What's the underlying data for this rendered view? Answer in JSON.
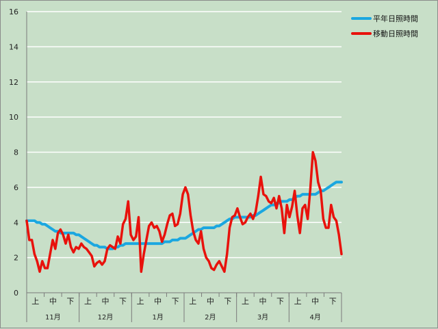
{
  "chart_data": {
    "type": "line",
    "ylim": [
      0,
      16
    ],
    "yticks": [
      "0",
      "2",
      "4",
      "6",
      "8",
      "10",
      "12",
      "14",
      "16"
    ],
    "grid": true,
    "legend_placement": "top-right",
    "x_sub_labels": [
      "上",
      "中",
      "下"
    ],
    "months": [
      "11月",
      "12月",
      "1月",
      "2月",
      "3月",
      "4月"
    ],
    "series": [
      {
        "name": "平年日照時間",
        "color": "#1ba7e0",
        "values": [
          4.1,
          4.1,
          4.1,
          4.1,
          4.0,
          4.0,
          3.9,
          3.9,
          3.8,
          3.7,
          3.6,
          3.5,
          3.5,
          3.4,
          3.4,
          3.4,
          3.4,
          3.4,
          3.4,
          3.3,
          3.3,
          3.2,
          3.1,
          3.0,
          2.9,
          2.8,
          2.7,
          2.7,
          2.6,
          2.6,
          2.6,
          2.5,
          2.5,
          2.5,
          2.6,
          2.6,
          2.7,
          2.7,
          2.8,
          2.8,
          2.8,
          2.8,
          2.8,
          2.8,
          2.8,
          2.8,
          2.8,
          2.8,
          2.8,
          2.8,
          2.8,
          2.8,
          2.8,
          2.9,
          2.9,
          2.9,
          3.0,
          3.0,
          3.0,
          3.1,
          3.1,
          3.1,
          3.2,
          3.3,
          3.4,
          3.5,
          3.6,
          3.6,
          3.7,
          3.7,
          3.7,
          3.7,
          3.7,
          3.8,
          3.8,
          3.9,
          4.0,
          4.1,
          4.2,
          4.2,
          4.3,
          4.3,
          4.3,
          4.3,
          4.3,
          4.3,
          4.3,
          4.4,
          4.4,
          4.5,
          4.6,
          4.7,
          4.8,
          4.9,
          5.0,
          5.0,
          5.1,
          5.1,
          5.2,
          5.2,
          5.2,
          5.3,
          5.3,
          5.4,
          5.5,
          5.5,
          5.6,
          5.6,
          5.6,
          5.6,
          5.6,
          5.6,
          5.7,
          5.8,
          5.8,
          5.9,
          6.0,
          6.1,
          6.2,
          6.3,
          6.3,
          6.3
        ]
      },
      {
        "name": "移動日照時間",
        "color": "#e8120c",
        "values": [
          4.1,
          3.0,
          3.0,
          2.2,
          1.8,
          1.2,
          1.8,
          1.4,
          1.4,
          2.2,
          3.0,
          2.5,
          3.4,
          3.6,
          3.3,
          2.8,
          3.3,
          2.6,
          2.3,
          2.6,
          2.5,
          2.8,
          2.6,
          2.5,
          2.3,
          2.1,
          1.5,
          1.7,
          1.8,
          1.6,
          1.8,
          2.5,
          2.7,
          2.6,
          2.5,
          3.2,
          2.8,
          3.9,
          4.2,
          5.2,
          3.3,
          3.0,
          3.2,
          4.3,
          1.2,
          2.2,
          3.0,
          3.8,
          4.0,
          3.7,
          3.8,
          3.5,
          2.9,
          3.3,
          3.9,
          4.4,
          4.5,
          3.8,
          3.9,
          4.5,
          5.6,
          6.0,
          5.6,
          4.4,
          3.5,
          3.0,
          2.8,
          3.5,
          2.5,
          2.0,
          1.8,
          1.4,
          1.3,
          1.6,
          1.8,
          1.5,
          1.2,
          2.2,
          3.7,
          4.3,
          4.4,
          4.8,
          4.3,
          3.9,
          4.0,
          4.3,
          4.5,
          4.2,
          4.6,
          5.5,
          6.6,
          5.6,
          5.5,
          5.2,
          5.1,
          5.4,
          4.8,
          5.5,
          4.8,
          3.4,
          5.0,
          4.3,
          4.9,
          5.8,
          4.4,
          3.4,
          4.8,
          5.0,
          4.2,
          5.9,
          8.0,
          7.5,
          6.3,
          5.8,
          4.2,
          3.7,
          3.7,
          5.0,
          4.3,
          4.1,
          3.3,
          2.2
        ]
      }
    ]
  }
}
